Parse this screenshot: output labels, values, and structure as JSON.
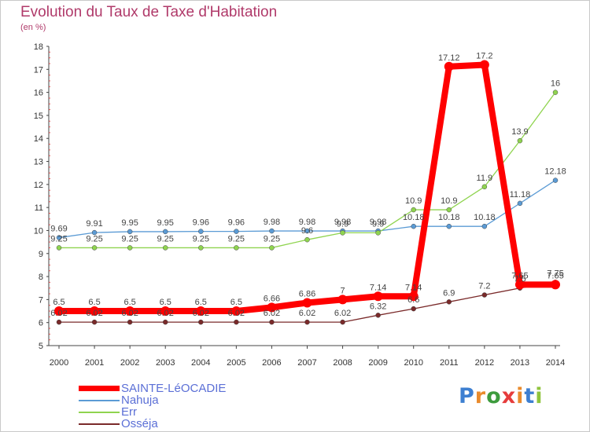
{
  "title": "Evolution du Taux de Taxe d'Habitation",
  "subtitle": "(en %)",
  "chart_data": {
    "type": "line",
    "title": "Evolution du Taux de Taxe d'Habitation",
    "ylabel": "(en %)",
    "xlabel": "",
    "x": [
      "2000",
      "2001",
      "2002",
      "2003",
      "2004",
      "2005",
      "2006",
      "2007",
      "2008",
      "2009",
      "2010",
      "2011",
      "2012",
      "2013",
      "2014"
    ],
    "ylim": [
      5,
      18
    ],
    "yticks": [
      5,
      6,
      7,
      8,
      9,
      10,
      11,
      12,
      13,
      14,
      15,
      16,
      17,
      18
    ],
    "grid": false,
    "legend_position": "bottom-left",
    "series": [
      {
        "name": "SAINTE-LéOCADIE",
        "color": "#ff0000",
        "emphasis": true,
        "values": [
          6.5,
          6.5,
          6.5,
          6.5,
          6.5,
          6.5,
          6.66,
          6.86,
          7,
          7.14,
          7.14,
          17.12,
          17.2,
          7.65,
          7.65
        ],
        "labels": [
          "6.5",
          "6.5",
          "6.5",
          "6.5",
          "6.5",
          "6.5",
          "6.66",
          "6.86",
          "7",
          "7.14",
          "7.14",
          "17.12",
          "17.2",
          "7.65",
          "7.65"
        ]
      },
      {
        "name": "Nahuja",
        "color": "#5b9bd5",
        "values": [
          9.69,
          9.91,
          9.95,
          9.95,
          9.96,
          9.96,
          9.98,
          9.98,
          9.98,
          9.98,
          10.18,
          10.18,
          10.18,
          11.18,
          12.18
        ],
        "labels": [
          "9.69",
          "9.91",
          "9.95",
          "9.95",
          "9.96",
          "9.96",
          "9.98",
          "9.98",
          "9.98",
          "9.98",
          "10.18",
          "10.18",
          "10.18",
          "11.18",
          "12.18"
        ]
      },
      {
        "name": "Err",
        "color": "#8fd44f",
        "values": [
          9.25,
          9.25,
          9.25,
          9.25,
          9.25,
          9.25,
          9.25,
          9.6,
          9.9,
          9.9,
          10.9,
          10.9,
          11.9,
          13.9,
          16
        ],
        "labels": [
          "9.25",
          "9.25",
          "9.25",
          "9.25",
          "9.25",
          "9.25",
          "9.25",
          "9.6",
          "9.9",
          "9.9",
          "10.9",
          "10.9",
          "11.9",
          "13.9",
          "16"
        ]
      },
      {
        "name": "Osséja",
        "color": "#7a2a2a",
        "values": [
          6.02,
          6.02,
          6.02,
          6.02,
          6.02,
          6.02,
          6.02,
          6.02,
          6.02,
          6.32,
          6.6,
          6.9,
          7.2,
          7.5,
          7.75
        ],
        "labels": [
          "6.02",
          "6.02",
          "6.02",
          "6.02",
          "6.02",
          "6.02",
          "6.02",
          "6.02",
          "6.02",
          "6.32",
          "6.6",
          "6.9",
          "7.2",
          "7.5",
          "7.75"
        ]
      }
    ]
  },
  "legend": {
    "items": [
      {
        "label": "SAINTE-LéOCADIE",
        "color": "#ff0000"
      },
      {
        "label": "Nahuja",
        "color": "#5b9bd5"
      },
      {
        "label": "Err",
        "color": "#8fd44f"
      },
      {
        "label": "Osséja",
        "color": "#7a2a2a"
      }
    ]
  },
  "logo": {
    "text": "Proxiti",
    "letter_colors": [
      "#3d7fd1",
      "#e98b2d",
      "#3d9b3d",
      "#e63c3c",
      "#e98b2d",
      "#3d7fd1",
      "#8fc43d"
    ]
  }
}
